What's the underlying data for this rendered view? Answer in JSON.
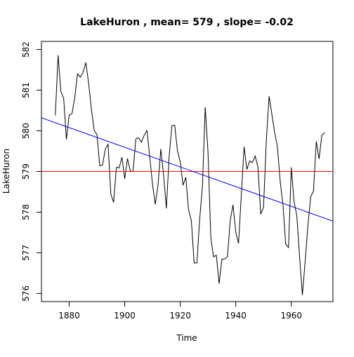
{
  "chart_data": {
    "type": "line",
    "title": "LakeHuron , mean= 579 , slope= -0.02",
    "xlabel": "Time",
    "ylabel": "LakeHuron",
    "xlim": [
      1870,
      1975
    ],
    "ylim": [
      575.8,
      582.2
    ],
    "x_ticks": [
      1880,
      1900,
      1920,
      1940,
      1960
    ],
    "y_ticks": [
      576,
      577,
      578,
      579,
      580,
      581,
      582
    ],
    "grid": false,
    "legend": "none",
    "colors": {
      "series": "#000000",
      "mean_line": "#ff0000",
      "trend_line": "#0000ff",
      "frame": "#000000"
    },
    "series": [
      {
        "x_start": 1875,
        "x_step": 1,
        "values": [
          580.38,
          581.86,
          580.97,
          580.8,
          579.79,
          580.39,
          580.42,
          580.82,
          581.4,
          581.32,
          581.44,
          581.68,
          581.17,
          580.53,
          580.01,
          579.91,
          579.14,
          579.16,
          579.55,
          579.67,
          578.44,
          578.24,
          579.1,
          579.09,
          579.35,
          578.82,
          579.32,
          579.01,
          579.0,
          579.8,
          579.83,
          579.72,
          579.89,
          580.01,
          579.37,
          578.69,
          578.19,
          578.67,
          579.55,
          578.92,
          578.09,
          579.37,
          580.13,
          580.14,
          579.51,
          579.24,
          578.66,
          578.86,
          578.05,
          577.79,
          576.75,
          576.75,
          577.82,
          578.64,
          580.58,
          579.48,
          577.38,
          576.9,
          576.94,
          576.24,
          576.84,
          576.85,
          576.9,
          577.79,
          578.18,
          577.51,
          577.23,
          578.42,
          579.61,
          579.05,
          579.26,
          579.22,
          579.38,
          579.1,
          577.95,
          578.12,
          579.75,
          580.85,
          580.41,
          579.96,
          579.61,
          578.76,
          578.18,
          577.21,
          577.13,
          579.1,
          578.25,
          577.91,
          576.89,
          575.96,
          576.8,
          577.68,
          578.38,
          578.52,
          579.74,
          579.31,
          579.89,
          579.96
        ]
      }
    ],
    "mean": 579.0,
    "trend": {
      "intercept_at_1875": 580.2,
      "slope": -0.0242
    }
  }
}
